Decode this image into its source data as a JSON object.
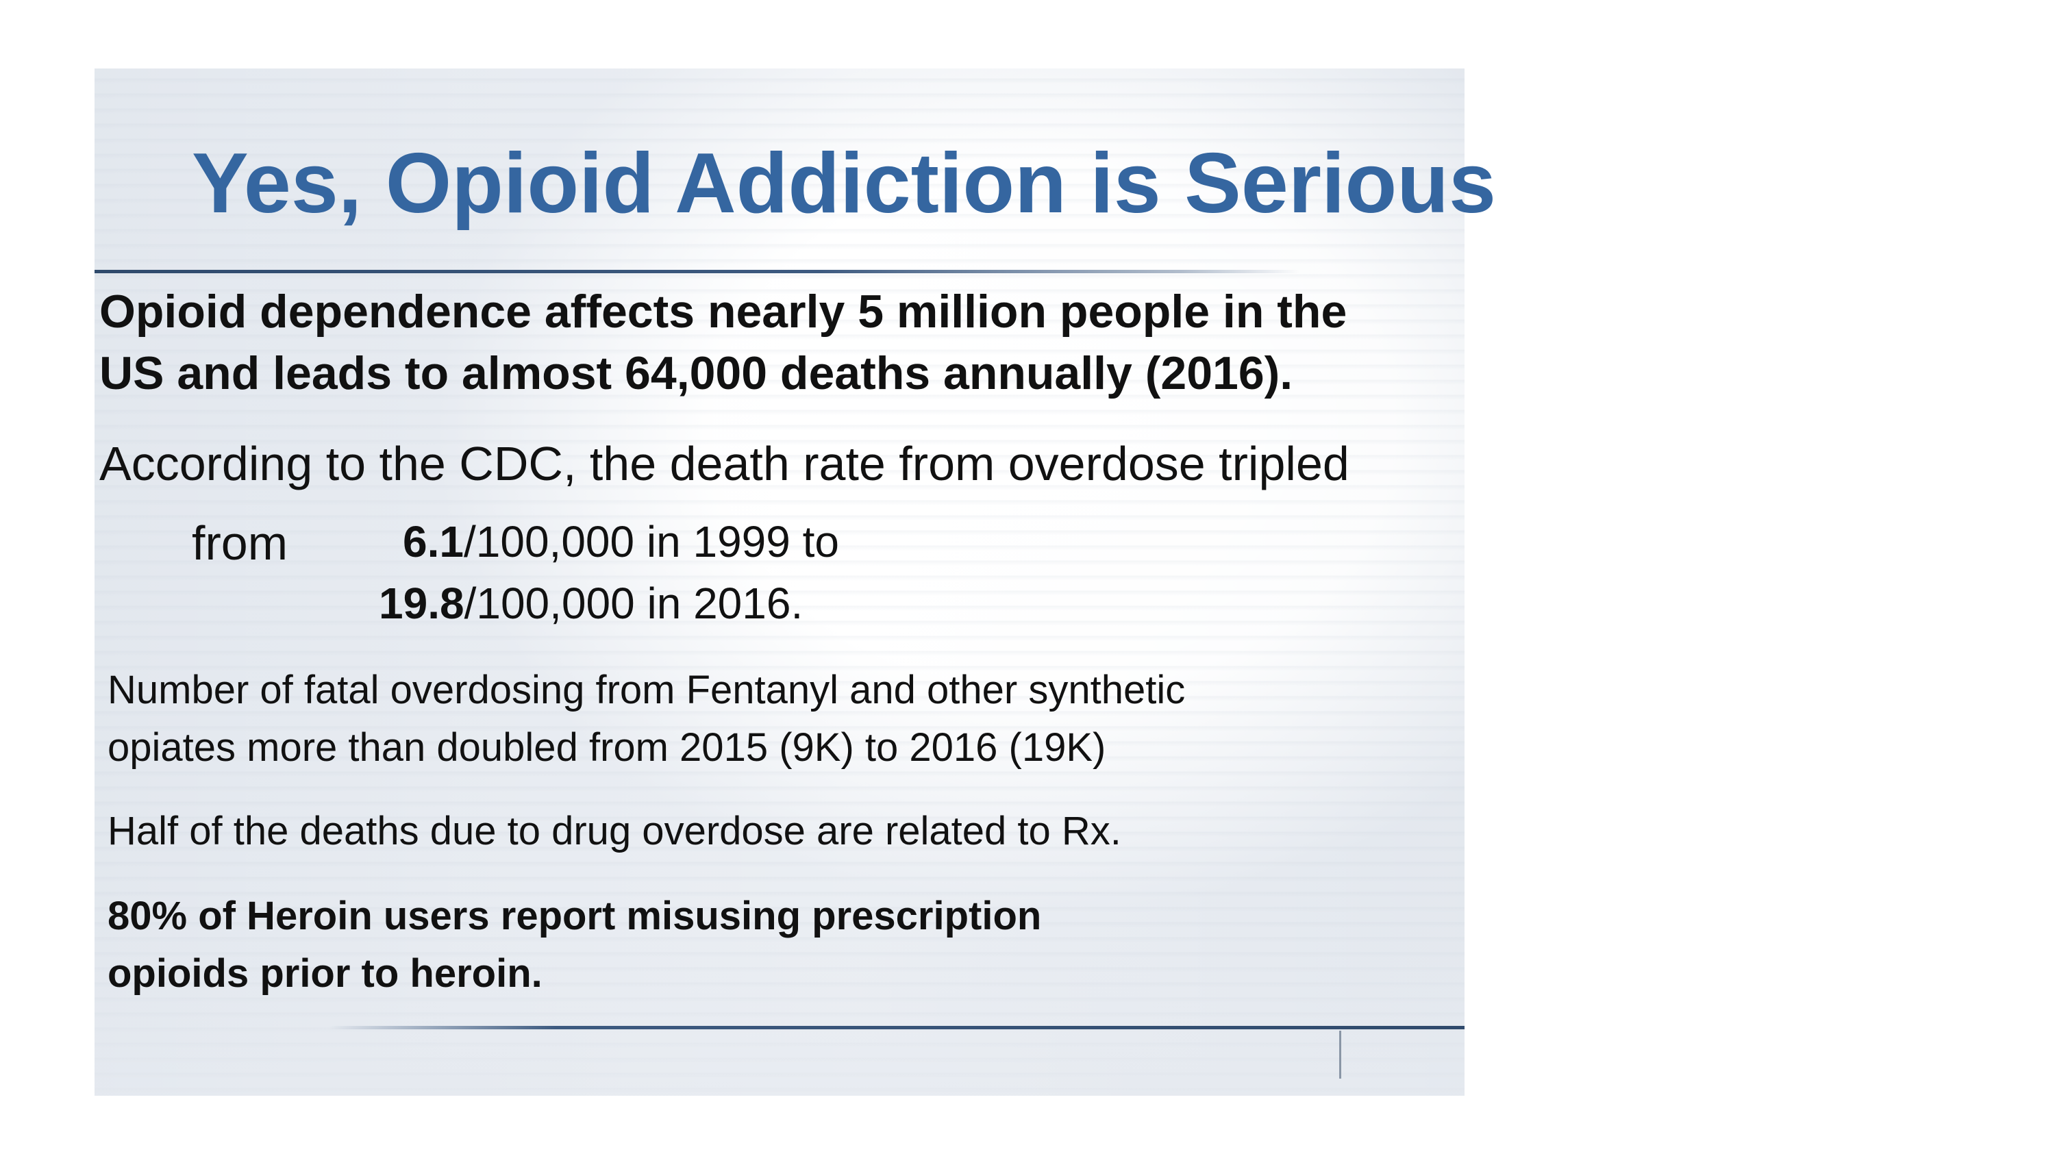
{
  "slide": {
    "title": "Yes, Opioid Addiction is Serious",
    "point1": {
      "line1": "Opioid dependence affects nearly 5 million people in the",
      "line2": "US and leads to almost 64,000 deaths annually (2016)."
    },
    "point2": {
      "intro": "According to the CDC, the death rate from overdose tripled",
      "from_label": "from",
      "rate1_value": "6.1",
      "rate1_rest": "/100,000 in 1999 to",
      "rate2_value": "19.8",
      "rate2_rest": "/100,000 in 2016."
    },
    "point3": {
      "line1": "Number of fatal overdosing from Fentanyl and other synthetic",
      "line2": "opiates more than doubled from 2015 (9K) to 2016 (19K)"
    },
    "point4": {
      "line1": "Half of the deaths due to drug overdose are related to Rx."
    },
    "point5": {
      "line1": "80% of Heroin users report misusing prescription",
      "line2": "opioids prior to heroin."
    }
  },
  "colors": {
    "title": "#3566a0",
    "rule": "#2f4a6c",
    "text": "#111111"
  }
}
